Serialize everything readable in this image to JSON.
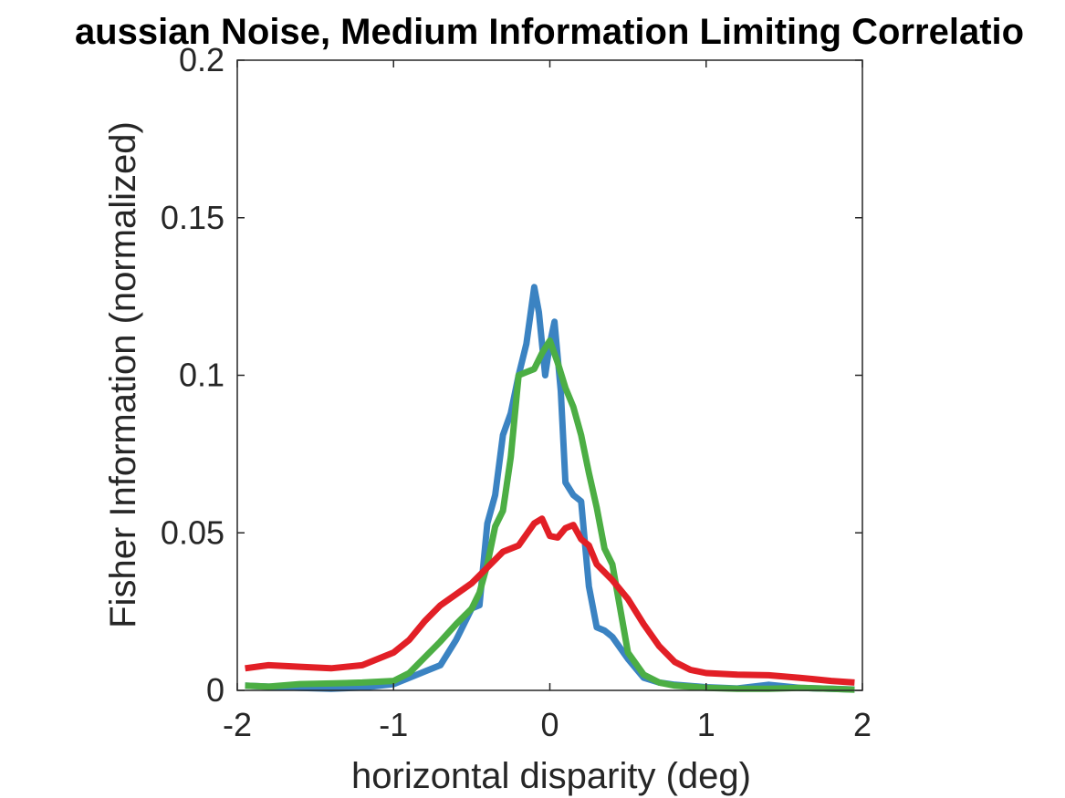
{
  "chart_data": {
    "type": "line",
    "title": "aussian Noise, Medium Information Limiting Correlatio",
    "xlabel": "horizontal disparity (deg)",
    "ylabel": "Fisher Information (normalized)",
    "xlim": [
      -2,
      2
    ],
    "ylim": [
      0,
      0.2
    ],
    "x_ticks": [
      -2,
      -1,
      0,
      1,
      2
    ],
    "x_tick_labels": [
      "-2",
      "-1",
      "0",
      "1",
      "2"
    ],
    "y_ticks": [
      0,
      0.05,
      0.1,
      0.15,
      0.2
    ],
    "y_tick_labels": [
      "0",
      "0.05",
      "0.1",
      "0.15",
      "0.2"
    ],
    "grid": false,
    "box": true,
    "series": [
      {
        "color": "#3B83C2",
        "x": [
          -1.95,
          -1.8,
          -1.6,
          -1.4,
          -1.2,
          -1.0,
          -0.9,
          -0.8,
          -0.7,
          -0.6,
          -0.5,
          -0.45,
          -0.4,
          -0.35,
          -0.3,
          -0.25,
          -0.2,
          -0.15,
          -0.1,
          -0.07,
          -0.03,
          0.0,
          0.03,
          0.07,
          0.1,
          0.15,
          0.2,
          0.25,
          0.3,
          0.35,
          0.4,
          0.5,
          0.6,
          0.7,
          0.8,
          1.0,
          1.2,
          1.4,
          1.6,
          1.8,
          1.95
        ],
        "y": [
          0.0015,
          0.0012,
          0.0008,
          0.0005,
          0.0009,
          0.002,
          0.004,
          0.006,
          0.008,
          0.016,
          0.026,
          0.027,
          0.053,
          0.062,
          0.081,
          0.088,
          0.1,
          0.11,
          0.128,
          0.12,
          0.1,
          0.11,
          0.117,
          0.095,
          0.066,
          0.062,
          0.06,
          0.033,
          0.02,
          0.019,
          0.017,
          0.01,
          0.004,
          0.0025,
          0.0018,
          0.001,
          0.0006,
          0.0018,
          0.0008,
          0.0005,
          0.0003
        ]
      },
      {
        "color": "#4CAE44",
        "x": [
          -1.95,
          -1.8,
          -1.6,
          -1.4,
          -1.2,
          -1.0,
          -0.9,
          -0.8,
          -0.7,
          -0.6,
          -0.5,
          -0.45,
          -0.4,
          -0.35,
          -0.3,
          -0.25,
          -0.2,
          -0.15,
          -0.1,
          -0.05,
          0.0,
          0.05,
          0.1,
          0.15,
          0.2,
          0.25,
          0.3,
          0.35,
          0.4,
          0.5,
          0.6,
          0.7,
          0.8,
          1.0,
          1.2,
          1.4,
          1.6,
          1.8,
          1.95
        ],
        "y": [
          0.0015,
          0.0012,
          0.002,
          0.0022,
          0.0025,
          0.003,
          0.0055,
          0.0105,
          0.0155,
          0.021,
          0.026,
          0.031,
          0.04,
          0.052,
          0.057,
          0.074,
          0.1,
          0.101,
          0.102,
          0.107,
          0.111,
          0.104,
          0.096,
          0.09,
          0.081,
          0.069,
          0.058,
          0.045,
          0.04,
          0.012,
          0.005,
          0.0025,
          0.0015,
          0.0008,
          0.0005,
          0.0005,
          0.0008,
          0.0005,
          0.0002
        ]
      },
      {
        "color": "#E21F26",
        "x": [
          -1.95,
          -1.8,
          -1.6,
          -1.4,
          -1.2,
          -1.0,
          -0.9,
          -0.8,
          -0.7,
          -0.6,
          -0.5,
          -0.4,
          -0.3,
          -0.2,
          -0.1,
          -0.05,
          0.0,
          0.05,
          0.1,
          0.15,
          0.2,
          0.25,
          0.3,
          0.4,
          0.5,
          0.6,
          0.7,
          0.8,
          0.9,
          1.0,
          1.2,
          1.4,
          1.6,
          1.8,
          1.95
        ],
        "y": [
          0.007,
          0.008,
          0.0075,
          0.007,
          0.008,
          0.012,
          0.016,
          0.022,
          0.027,
          0.0305,
          0.034,
          0.039,
          0.044,
          0.046,
          0.053,
          0.0545,
          0.049,
          0.0485,
          0.0515,
          0.0525,
          0.048,
          0.046,
          0.04,
          0.035,
          0.029,
          0.021,
          0.014,
          0.009,
          0.0065,
          0.0055,
          0.005,
          0.0048,
          0.004,
          0.003,
          0.0025
        ]
      }
    ]
  }
}
